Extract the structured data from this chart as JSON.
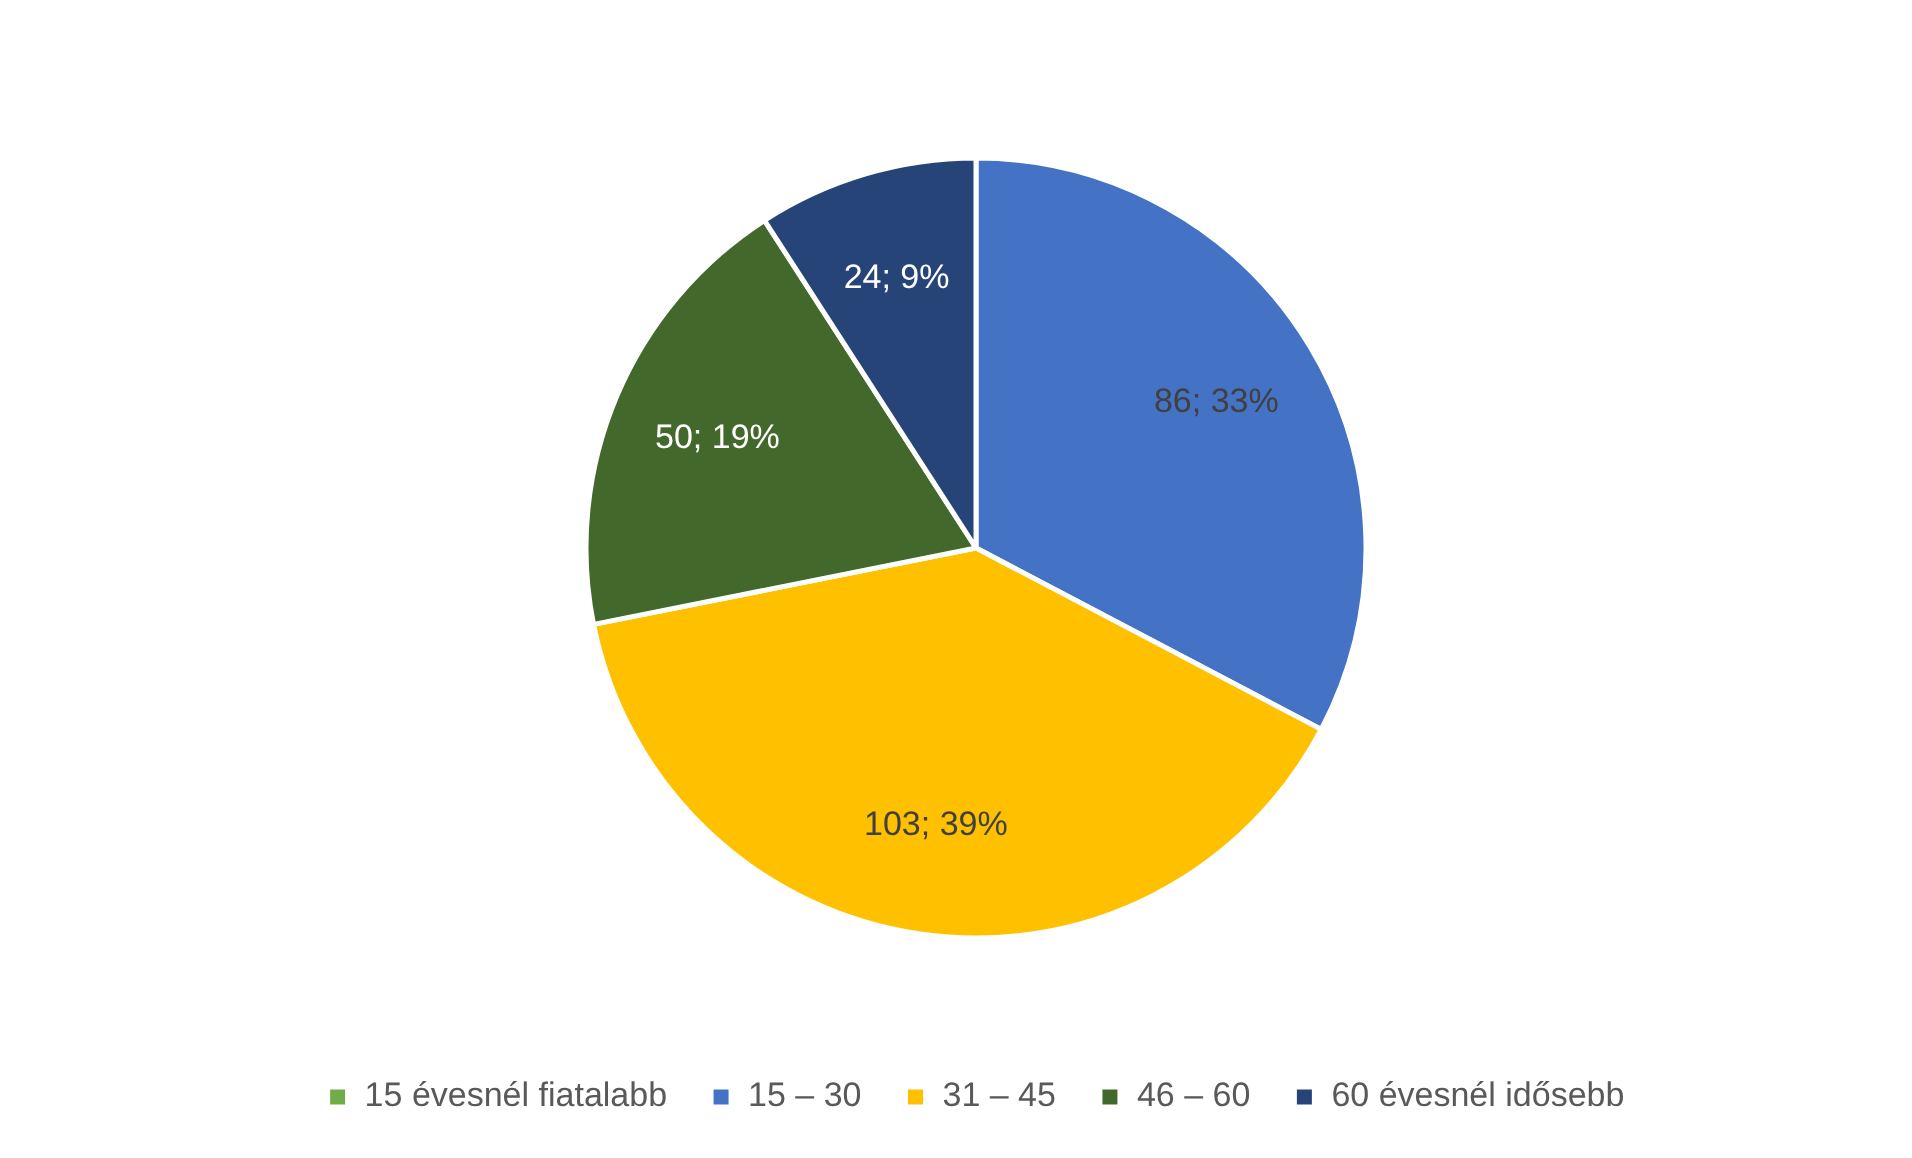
{
  "chart_data": {
    "type": "pie",
    "categories": [
      "15 évesnél fiatalabb",
      "15 – 30",
      "31 – 45",
      "46 – 60",
      "60 évesnél idősebb"
    ],
    "values": [
      null,
      86,
      103,
      50,
      24
    ],
    "colors": [
      "#70ad47",
      "#4472c4",
      "#ffc000",
      "#43682b",
      "#264478"
    ],
    "value_labels": [
      null,
      "86; 33%",
      "103; 39%",
      "50; 19%",
      "24; 9%"
    ],
    "legend": "bottom"
  }
}
